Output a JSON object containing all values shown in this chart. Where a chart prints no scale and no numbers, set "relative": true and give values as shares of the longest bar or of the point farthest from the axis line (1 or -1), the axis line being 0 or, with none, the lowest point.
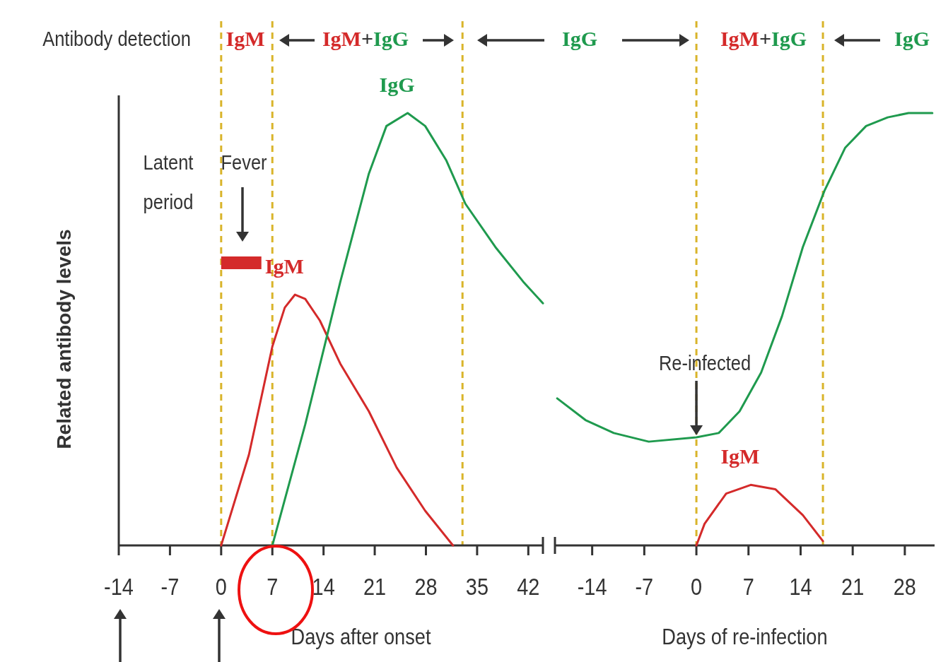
{
  "chart_data": [
    {
      "type": "line",
      "relative": true,
      "xlabel": "Days after onset",
      "ylabel": "Related antibody levels",
      "xlim": [
        -14,
        44
      ],
      "xticks": [
        -14,
        -7,
        0,
        7,
        14,
        21,
        28,
        35,
        42
      ],
      "line_style": "solid",
      "series": [
        {
          "name": "IgM",
          "color": "#d42a2a",
          "x": [
            0,
            3.8,
            7,
            8.7,
            10.1,
            11.5,
            13.5,
            16.3,
            20.2,
            24,
            27.9,
            31.7
          ],
          "values": [
            0,
            0.21,
            0.46,
            0.55,
            0.58,
            0.57,
            0.52,
            0.42,
            0.31,
            0.18,
            0.08,
            0
          ]
        },
        {
          "name": "IgG",
          "color": "#1f9a4e",
          "x": [
            7,
            11.5,
            16.3,
            20.2,
            22.6,
            25.5,
            27.9,
            30.8,
            33.4,
            37.5,
            41.3,
            44
          ],
          "values": [
            0,
            0.28,
            0.61,
            0.86,
            0.97,
            1,
            0.97,
            0.89,
            0.79,
            0.69,
            0.61,
            0.56
          ]
        }
      ],
      "ref_lines": [
        {
          "axis": "x",
          "value": 0,
          "color": "#d9b42a",
          "line_style": "dashed"
        },
        {
          "axis": "x",
          "value": 7,
          "color": "#d9b42a",
          "line_style": "dashed"
        },
        {
          "axis": "x",
          "value": 33,
          "color": "#d9b42a",
          "line_style": "dashed"
        }
      ],
      "annotations": [
        "Antibody detection",
        "IgM",
        "IgM+IgG",
        "Latent period",
        "Fever"
      ]
    },
    {
      "type": "line",
      "relative": true,
      "xlabel": "Days of re-infection",
      "xlim": [
        -19,
        32
      ],
      "xticks": [
        -14,
        -7,
        0,
        7,
        14,
        21,
        28
      ],
      "line_style": "solid",
      "series": [
        {
          "color": "#1f9a4e",
          "x": [
            -18.7,
            -14.9,
            -11.1,
            -6.4,
            0,
            3,
            5.8,
            8.7,
            11.5,
            14.3,
            17.2,
            20,
            22.8,
            25.7,
            28.5,
            31.7
          ],
          "values": [
            0.34,
            0.29,
            0.26,
            0.24,
            0.25,
            0.26,
            0.31,
            0.4,
            0.53,
            0.69,
            0.82,
            0.92,
            0.97,
            0.99,
            1,
            1
          ]
        },
        {
          "name": "IgM",
          "color": "#d42a2a",
          "x": [
            0,
            1.1,
            4,
            7.3,
            10.6,
            14.3,
            17
          ],
          "values": [
            0,
            0.05,
            0.12,
            0.14,
            0.13,
            0.07,
            0.01
          ]
        }
      ],
      "ref_lines": [
        {
          "axis": "x",
          "value": 0,
          "color": "#d9b42a",
          "line_style": "dashed"
        },
        {
          "axis": "x",
          "value": 17,
          "color": "#d9b42a",
          "line_style": "dashed"
        }
      ],
      "annotations": [
        "IgG",
        "IgM+IgG",
        "IgG",
        {
          "text": "Re-infected",
          "x": 0,
          "y": 0.25
        }
      ]
    }
  ]
}
